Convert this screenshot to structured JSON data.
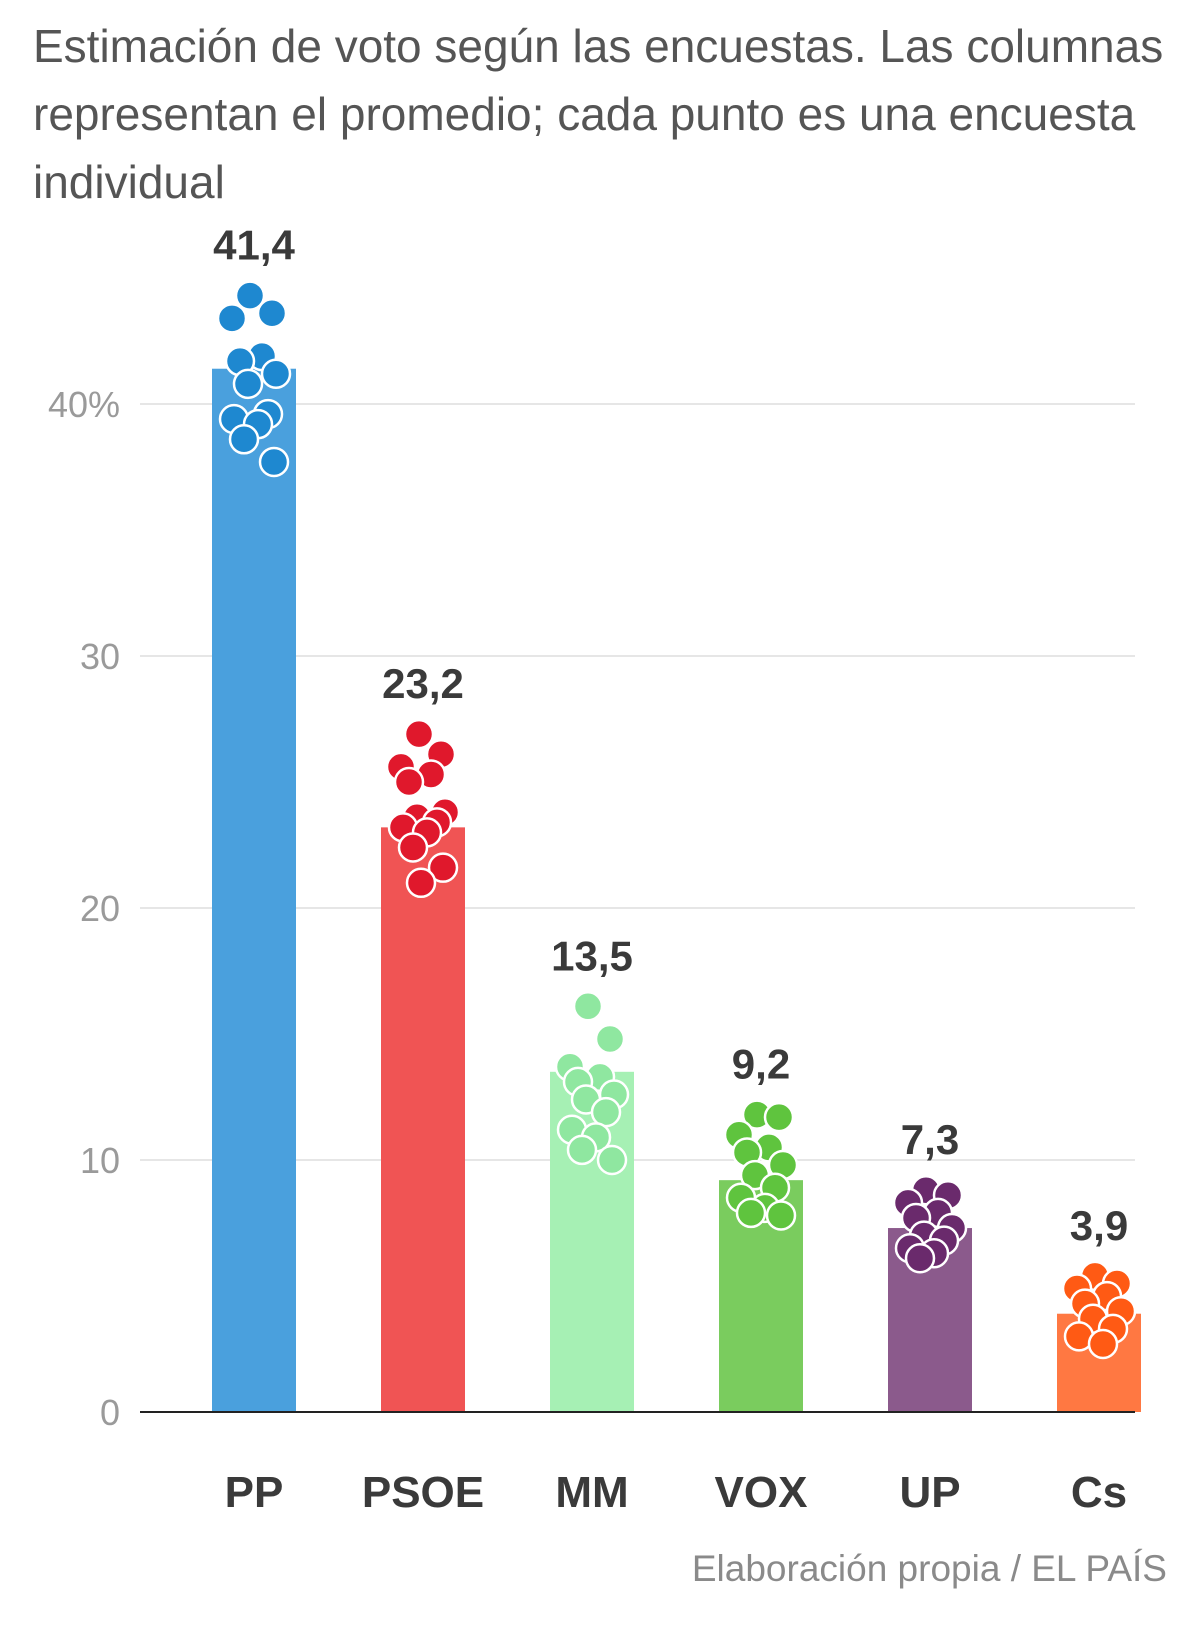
{
  "chart_data": {
    "type": "bar",
    "title": "Estimación de voto según las encuestas. Las columnas representan el promedio; cada punto es una encuesta individual",
    "source": "Elaboración propia / EL PAÍS",
    "ylim": [
      0,
      45
    ],
    "yticks": [
      {
        "value": 0,
        "label": "0"
      },
      {
        "value": 10,
        "label": "10"
      },
      {
        "value": 20,
        "label": "20"
      },
      {
        "value": 30,
        "label": "30"
      },
      {
        "value": 40,
        "label": "40%"
      }
    ],
    "grid": true,
    "categories": [
      "PP",
      "PSOE",
      "MM",
      "VOX",
      "UP",
      "Cs"
    ],
    "values": [
      41.4,
      23.2,
      13.5,
      9.2,
      7.3,
      3.9
    ],
    "value_labels": [
      "41,4",
      "23,2",
      "13,5",
      "9,2",
      "7,3",
      "3,9"
    ],
    "colors": {
      "bars": [
        "#4aa0dd",
        "#f05454",
        "#a6f0b4",
        "#7acc5e",
        "#8b5a8c",
        "#ff7842"
      ],
      "dots": [
        "#1e88d0",
        "#e0182c",
        "#8fe7a0",
        "#5fc43e",
        "#6a2a6c",
        "#ff5a14"
      ]
    },
    "polls": [
      [
        44.3,
        43.6,
        43.4,
        41.9,
        41.7,
        41.2,
        40.8,
        39.6,
        39.4,
        39.2,
        38.6,
        37.7
      ],
      [
        26.9,
        26.1,
        25.6,
        25.3,
        25.0,
        23.8,
        23.6,
        23.4,
        23.2,
        23.0,
        22.4,
        21.6,
        21.0
      ],
      [
        16.1,
        14.8,
        13.7,
        13.3,
        13.1,
        12.6,
        12.4,
        11.9,
        11.2,
        10.9,
        10.4,
        10.0
      ],
      [
        11.8,
        11.7,
        11.0,
        10.5,
        10.3,
        9.8,
        9.4,
        8.9,
        8.5,
        8.1,
        7.9,
        7.8
      ],
      [
        8.8,
        8.6,
        8.3,
        7.9,
        7.7,
        7.3,
        7.0,
        6.8,
        6.5,
        6.3,
        6.1
      ],
      [
        5.4,
        5.1,
        4.9,
        4.6,
        4.3,
        4.0,
        3.7,
        3.3,
        3.0,
        2.7
      ]
    ]
  }
}
